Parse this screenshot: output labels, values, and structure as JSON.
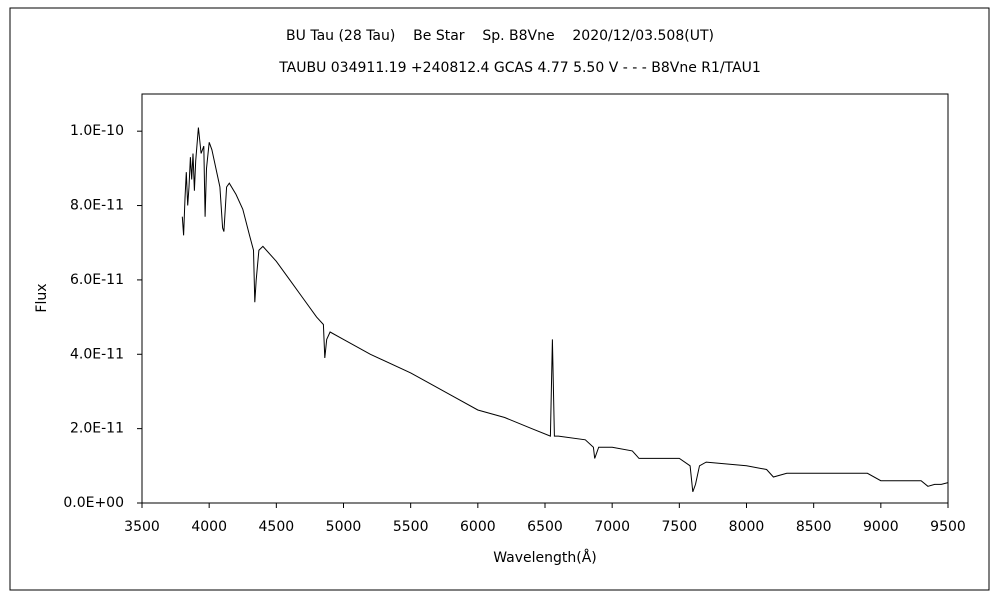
{
  "chart_data": {
    "type": "line",
    "title": "BU Tau (28 Tau)    Be Star    Sp. B8Vne    2020/12/03.508(UT)",
    "subtitle": "TAUBU 034911.19 +240812.4 GCAS 4.77 5.50 V - - - B8Vne R1/TAU1",
    "x_label": "Wavelength(Å)",
    "y_label": "Flux",
    "color": "#000000",
    "x": [
      3800,
      3810,
      3820,
      3830,
      3840,
      3850,
      3860,
      3870,
      3880,
      3890,
      3900,
      3920,
      3940,
      3960,
      3970,
      3980,
      4000,
      4020,
      4050,
      4080,
      4100,
      4110,
      4130,
      4150,
      4200,
      4250,
      4300,
      4330,
      4340,
      4350,
      4370,
      4400,
      4500,
      4600,
      4700,
      4800,
      4850,
      4861,
      4875,
      4900,
      5000,
      5200,
      5500,
      5800,
      6000,
      6200,
      6400,
      6540,
      6555,
      6570,
      6600,
      6800,
      6860,
      6870,
      6900,
      7000,
      7150,
      7200,
      7300,
      7500,
      7580,
      7600,
      7620,
      7650,
      7700,
      8000,
      8150,
      8200,
      8300,
      8600,
      8900,
      9000,
      9300,
      9350,
      9400,
      9450,
      9500
    ],
    "values": [
      7.7e-11,
      7.2e-11,
      8.2e-11,
      8.9e-11,
      8e-11,
      8.5e-11,
      9.3e-11,
      8.7e-11,
      9.4e-11,
      8.4e-11,
      9.2e-11,
      1.01e-10,
      9.4e-11,
      9.6e-11,
      7.7e-11,
      9e-11,
      9.7e-11,
      9.5e-11,
      9e-11,
      8.5e-11,
      7.4e-11,
      7.3e-11,
      8.5e-11,
      8.6e-11,
      8.3e-11,
      7.9e-11,
      7.2e-11,
      6.8e-11,
      5.4e-11,
      6e-11,
      6.8e-11,
      6.9e-11,
      6.5e-11,
      6e-11,
      5.5e-11,
      5e-11,
      4.8e-11,
      3.9e-11,
      4.4e-11,
      4.6e-11,
      4.4e-11,
      4e-11,
      3.5e-11,
      2.9e-11,
      2.5e-11,
      2.3e-11,
      2e-11,
      1.8e-11,
      4.4e-11,
      1.8e-11,
      1.8e-11,
      1.7e-11,
      1.5e-11,
      1.2e-11,
      1.5e-11,
      1.5e-11,
      1.4e-11,
      1.2e-11,
      1.2e-11,
      1.2e-11,
      1e-11,
      3e-12,
      5e-12,
      1e-11,
      1.1e-11,
      1e-11,
      9e-12,
      7e-12,
      8e-12,
      8e-12,
      8e-12,
      6e-12,
      6e-12,
      4.5e-12,
      5e-12,
      5e-12,
      5.5e-12
    ],
    "xlim": [
      3500,
      9500
    ],
    "xticks": [
      3500,
      4000,
      4500,
      5000,
      5500,
      6000,
      6500,
      7000,
      7500,
      8000,
      8500,
      9000,
      9500
    ],
    "ylim": [
      0,
      1.1e-10
    ],
    "yticks": [
      {
        "value": 0,
        "label": "0.0E+00"
      },
      {
        "value": 2e-11,
        "label": "2.0E-11"
      },
      {
        "value": 4e-11,
        "label": "4.0E-11"
      },
      {
        "value": 6e-11,
        "label": "6.0E-11"
      },
      {
        "value": 8e-11,
        "label": "8.0E-11"
      },
      {
        "value": 1e-10,
        "label": "1.0E-10"
      }
    ]
  }
}
